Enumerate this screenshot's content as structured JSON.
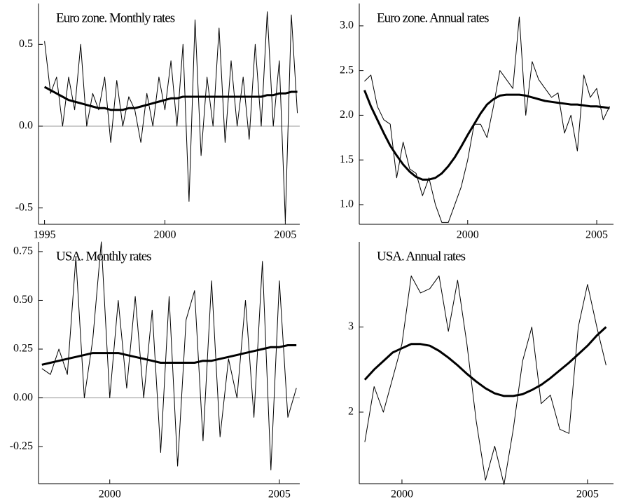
{
  "chart_data": [
    {
      "type": "line",
      "title": "Euro zone. Monthly rates",
      "x": [
        1995,
        1995.25,
        1995.5,
        1995.75,
        1996,
        1996.25,
        1996.5,
        1996.75,
        1997,
        1997.25,
        1997.5,
        1997.75,
        1998,
        1998.25,
        1998.5,
        1998.75,
        1999,
        1999.25,
        1999.5,
        1999.75,
        2000,
        2000.25,
        2000.5,
        2000.75,
        2001,
        2001.25,
        2001.5,
        2001.75,
        2002,
        2002.25,
        2002.5,
        2002.75,
        2003,
        2003.25,
        2003.5,
        2003.75,
        2004,
        2004.25,
        2004.5,
        2004.75,
        2005,
        2005.25,
        2005.5
      ],
      "series": [
        {
          "color": "#000000",
          "line_width": 1,
          "values": [
            0.52,
            0.2,
            0.3,
            0.0,
            0.3,
            0.1,
            0.5,
            0.0,
            0.2,
            0.1,
            0.3,
            -0.1,
            0.28,
            0.0,
            0.18,
            0.1,
            -0.1,
            0.2,
            0.0,
            0.3,
            0.1,
            0.4,
            0.0,
            0.5,
            -0.46,
            0.65,
            -0.18,
            0.3,
            0.0,
            0.6,
            -0.1,
            0.4,
            0.0,
            0.3,
            -0.08,
            0.5,
            0.0,
            0.7,
            0.0,
            0.4,
            -0.58,
            0.68,
            0.08
          ]
        },
        {
          "color": "#000000",
          "line_width": 3,
          "values": [
            0.24,
            0.22,
            0.2,
            0.18,
            0.16,
            0.15,
            0.14,
            0.13,
            0.12,
            0.11,
            0.11,
            0.1,
            0.1,
            0.1,
            0.11,
            0.11,
            0.12,
            0.13,
            0.14,
            0.15,
            0.16,
            0.17,
            0.17,
            0.18,
            0.18,
            0.18,
            0.18,
            0.18,
            0.18,
            0.18,
            0.18,
            0.18,
            0.18,
            0.18,
            0.18,
            0.18,
            0.18,
            0.19,
            0.19,
            0.2,
            0.2,
            0.21,
            0.21
          ]
        }
      ],
      "xlim": [
        1994.75,
        2005.6
      ],
      "xticks": [
        1995,
        2000,
        2005
      ],
      "ylim": [
        -0.6,
        0.75
      ],
      "yticks": [
        0.5,
        {
          "value": 0,
          "label": "0.0"
        },
        -0.5
      ],
      "zero_line": true
    },
    {
      "type": "line",
      "title": "Euro zone. Annual rates",
      "x": [
        1996,
        1996.25,
        1996.5,
        1996.75,
        1997,
        1997.25,
        1997.5,
        1997.75,
        1998,
        1998.25,
        1998.5,
        1998.75,
        1999,
        1999.25,
        1999.5,
        1999.75,
        2000,
        2000.25,
        2000.5,
        2000.75,
        2001,
        2001.25,
        2001.5,
        2001.75,
        2002,
        2002.25,
        2002.5,
        2002.75,
        2003,
        2003.25,
        2003.5,
        2003.75,
        2004,
        2004.25,
        2004.5,
        2004.75,
        2005,
        2005.25,
        2005.5
      ],
      "series": [
        {
          "color": "#000000",
          "line_width": 1,
          "values": [
            2.38,
            2.45,
            2.1,
            1.95,
            1.9,
            1.3,
            1.7,
            1.4,
            1.35,
            1.1,
            1.3,
            1.0,
            0.8,
            0.8,
            1.0,
            1.2,
            1.5,
            1.9,
            1.9,
            1.75,
            2.1,
            2.5,
            2.4,
            2.3,
            3.1,
            2.0,
            2.6,
            2.4,
            2.3,
            2.2,
            2.25,
            1.8,
            2.0,
            1.6,
            2.45,
            2.2,
            2.3,
            1.95,
            2.1
          ]
        },
        {
          "color": "#000000",
          "line_width": 3,
          "values": [
            2.28,
            2.1,
            1.95,
            1.8,
            1.66,
            1.55,
            1.45,
            1.37,
            1.31,
            1.28,
            1.28,
            1.3,
            1.35,
            1.43,
            1.53,
            1.65,
            1.78,
            1.9,
            2.02,
            2.12,
            2.18,
            2.22,
            2.23,
            2.23,
            2.23,
            2.22,
            2.2,
            2.18,
            2.16,
            2.15,
            2.14,
            2.13,
            2.12,
            2.12,
            2.11,
            2.1,
            2.1,
            2.09,
            2.08
          ]
        }
      ],
      "xlim": [
        1995.8,
        2005.65
      ],
      "xticks": [
        2000,
        2005
      ],
      "ylim": [
        0.78,
        3.25
      ],
      "yticks": [
        {
          "value": 1,
          "label": "1.0"
        },
        1.5,
        {
          "value": 2,
          "label": "2.0"
        },
        2.5,
        {
          "value": 3,
          "label": "3.0"
        }
      ],
      "zero_line": false
    },
    {
      "type": "line",
      "title": "USA. Monthly rates",
      "x": [
        1998,
        1998.25,
        1998.5,
        1998.75,
        1999,
        1999.25,
        1999.5,
        1999.75,
        2000,
        2000.25,
        2000.5,
        2000.75,
        2001,
        2001.25,
        2001.5,
        2001.75,
        2002,
        2002.25,
        2002.5,
        2002.75,
        2003,
        2003.25,
        2003.5,
        2003.75,
        2004,
        2004.25,
        2004.5,
        2004.75,
        2005,
        2005.25,
        2005.5
      ],
      "series": [
        {
          "color": "#000000",
          "line_width": 1,
          "values": [
            0.15,
            0.12,
            0.25,
            0.12,
            0.72,
            0.0,
            0.3,
            0.8,
            0.0,
            0.5,
            0.05,
            0.52,
            0.0,
            0.45,
            -0.28,
            0.52,
            -0.35,
            0.4,
            0.55,
            -0.22,
            0.6,
            -0.2,
            0.2,
            0.0,
            0.5,
            -0.1,
            0.7,
            -0.37,
            0.6,
            -0.1,
            0.05
          ]
        },
        {
          "color": "#000000",
          "line_width": 3,
          "values": [
            0.17,
            0.18,
            0.19,
            0.2,
            0.21,
            0.22,
            0.23,
            0.23,
            0.23,
            0.23,
            0.22,
            0.21,
            0.2,
            0.19,
            0.18,
            0.18,
            0.18,
            0.18,
            0.18,
            0.19,
            0.19,
            0.2,
            0.21,
            0.22,
            0.23,
            0.24,
            0.25,
            0.26,
            0.26,
            0.27,
            0.27
          ]
        }
      ],
      "xlim": [
        1997.9,
        2005.6
      ],
      "xticks": [
        2000,
        2005
      ],
      "ylim": [
        -0.44,
        0.8
      ],
      "yticks": [
        0.75,
        {
          "value": 0.5,
          "label": "0.50"
        },
        0.25,
        {
          "value": 0,
          "label": "0.00"
        },
        -0.25
      ],
      "zero_line": true
    },
    {
      "type": "line",
      "title": "USA. Annual rates",
      "x": [
        1999,
        1999.25,
        1999.5,
        1999.75,
        2000,
        2000.25,
        2000.5,
        2000.75,
        2001,
        2001.25,
        2001.5,
        2001.75,
        2002,
        2002.25,
        2002.5,
        2002.75,
        2003,
        2003.25,
        2003.5,
        2003.75,
        2004,
        2004.25,
        2004.5,
        2004.75,
        2005,
        2005.25,
        2005.5
      ],
      "series": [
        {
          "color": "#000000",
          "line_width": 1,
          "values": [
            1.65,
            2.3,
            2.0,
            2.4,
            2.8,
            3.6,
            3.4,
            3.45,
            3.6,
            2.95,
            3.55,
            2.8,
            1.9,
            1.2,
            1.6,
            1.15,
            1.8,
            2.6,
            3.0,
            2.1,
            2.2,
            1.8,
            1.75,
            3.0,
            3.5,
            3.0,
            2.55
          ]
        },
        {
          "color": "#000000",
          "line_width": 3,
          "values": [
            2.38,
            2.5,
            2.6,
            2.7,
            2.75,
            2.8,
            2.8,
            2.78,
            2.72,
            2.64,
            2.55,
            2.45,
            2.36,
            2.28,
            2.22,
            2.19,
            2.19,
            2.21,
            2.26,
            2.32,
            2.4,
            2.49,
            2.58,
            2.68,
            2.78,
            2.9,
            3.0
          ]
        }
      ],
      "xlim": [
        1998.85,
        2005.7
      ],
      "xticks": [
        2000,
        2005
      ],
      "ylim": [
        1.16,
        4.0
      ],
      "yticks": [
        2,
        3
      ],
      "zero_line": false
    }
  ]
}
